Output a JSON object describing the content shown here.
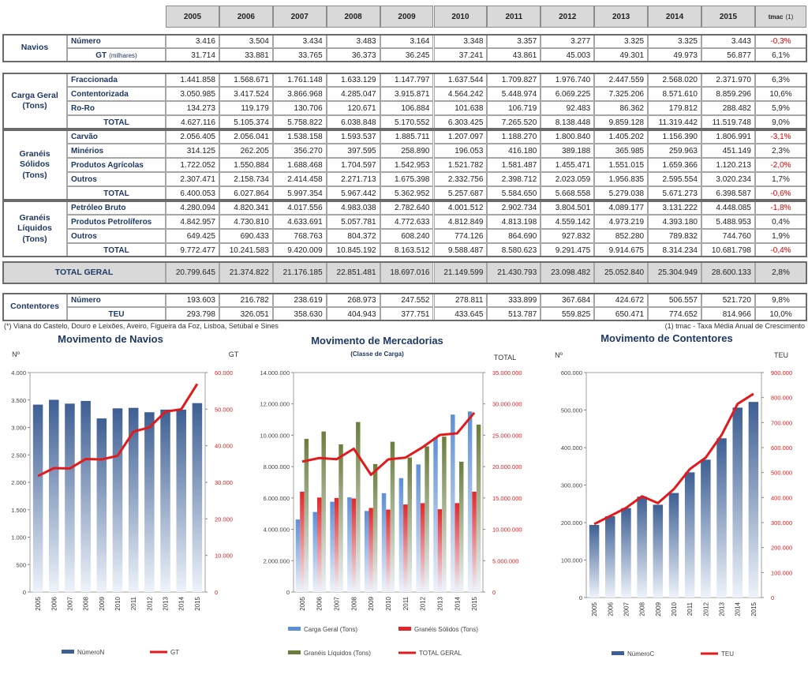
{
  "table": {
    "header": [
      "2005",
      "2006",
      "2007",
      "2008",
      "2009",
      "2010",
      "2011",
      "2012",
      "2013",
      "2014",
      "2015",
      "tmac"
    ],
    "header_note": "(1)",
    "sections": [
      {
        "label": "Navios",
        "rows": [
          {
            "label": "Número",
            "cells": [
              "3.416",
              "3.504",
              "3.434",
              "3.483",
              "3.164",
              "3.348",
              "3.357",
              "3.277",
              "3.325",
              "3.325",
              "3.443",
              "-0,3%"
            ]
          },
          {
            "label": "GT",
            "label_note": "(milhares)",
            "cells": [
              "31.714",
              "33.881",
              "33.765",
              "36.373",
              "36.245",
              "37.241",
              "43.861",
              "45.003",
              "49.301",
              "49.973",
              "56.877",
              "6,1%"
            ]
          }
        ]
      },
      {
        "label": "Carga Geral (Tons)",
        "rows": [
          {
            "label": "Fraccionada",
            "cells": [
              "1.441.858",
              "1.568.671",
              "1.761.148",
              "1.633.129",
              "1.147.797",
              "1.637.544",
              "1.709.827",
              "1.976.740",
              "2.447.559",
              "2.568.020",
              "2.371.970",
              "6,3%"
            ]
          },
          {
            "label": "Contentorizada",
            "cells": [
              "3.050.985",
              "3.417.524",
              "3.866.968",
              "4.285.047",
              "3.915.871",
              "4.564.242",
              "5.448.974",
              "6.069.225",
              "7.325.206",
              "8.571.610",
              "8.859.296",
              "10,6%"
            ]
          },
          {
            "label": "Ro-Ro",
            "cells": [
              "134.273",
              "119.179",
              "130.706",
              "120.671",
              "106.884",
              "101.638",
              "106.719",
              "92.483",
              "86.362",
              "179.812",
              "288.482",
              "5,9%"
            ]
          },
          {
            "label": "TOTAL",
            "cells": [
              "4.627.116",
              "5.105.374",
              "5.758.822",
              "6.038.848",
              "5.170.552",
              "6.303.425",
              "7.265.520",
              "8.138.448",
              "9.859.128",
              "11.319.442",
              "11.519.748",
              "9,0%"
            ]
          }
        ]
      },
      {
        "label": "Granéis Sólidos (Tons)",
        "rows": [
          {
            "label": "Carvão",
            "cells": [
              "2.056.405",
              "2.056.041",
              "1.538.158",
              "1.593.537",
              "1.885.711",
              "1.207.097",
              "1.188.270",
              "1.800.840",
              "1.405.202",
              "1.156.390",
              "1.806.991",
              "-3,1%"
            ]
          },
          {
            "label": "Minérios",
            "cells": [
              "314.125",
              "262.205",
              "356.270",
              "397.595",
              "258.890",
              "196.053",
              "416.180",
              "389.188",
              "365.985",
              "259.963",
              "451.149",
              "2,3%"
            ]
          },
          {
            "label": "Produtos Agrícolas",
            "cells": [
              "1.722.052",
              "1.550.884",
              "1.688.468",
              "1.704.597",
              "1.542.953",
              "1.521.782",
              "1.581.487",
              "1.455.471",
              "1.551.015",
              "1.659.366",
              "1.120.213",
              "-2,0%"
            ]
          },
          {
            "label": "Outros",
            "cells": [
              "2.307.471",
              "2.158.734",
              "2.414.458",
              "2.271.713",
              "1.675.398",
              "2.332.756",
              "2.398.712",
              "2.023.059",
              "1.956.835",
              "2.595.554",
              "3.020.234",
              "1,7%"
            ]
          },
          {
            "label": "TOTAL",
            "cells": [
              "6.400.053",
              "6.027.864",
              "5.997.354",
              "5.967.442",
              "5.362.952",
              "5.257.687",
              "5.584.650",
              "5.668.558",
              "5.279.038",
              "5.671.273",
              "6.398.587",
              "-0,6%"
            ]
          }
        ]
      },
      {
        "label": "Granéis Líquidos (Tons)",
        "rows": [
          {
            "label": "Petróleo Bruto",
            "cells": [
              "4.280.094",
              "4.820.341",
              "4.017.556",
              "4.983.038",
              "2.782.640",
              "4.001.512",
              "2.902.734",
              "3.804.501",
              "4.089.177",
              "3.131.222",
              "4.448.085",
              "-1,8%"
            ]
          },
          {
            "label": "Produtos Petrolíferos",
            "cells": [
              "4.842.957",
              "4.730.810",
              "4.633.691",
              "5.057.781",
              "4.772.633",
              "4.812.849",
              "4.813.198",
              "4.559.142",
              "4.973.219",
              "4.393.180",
              "5.488.953",
              "0,4%"
            ]
          },
          {
            "label": "Outros",
            "cells": [
              "649.425",
              "690.433",
              "768.763",
              "804.372",
              "608.240",
              "774.126",
              "864.690",
              "927.832",
              "852.280",
              "789.832",
              "744.760",
              "1,9%"
            ]
          },
          {
            "label": "TOTAL",
            "cells": [
              "9.772.477",
              "10.241.583",
              "9.420.009",
              "10.845.192",
              "8.163.512",
              "9.588.487",
              "8.580.623",
              "9.291.475",
              "9.914.675",
              "8.314.234",
              "10.681.798",
              "-0,4%"
            ]
          }
        ]
      },
      {
        "label": "TOTAL GERAL",
        "cells": [
          "20.799.645",
          "21.374.822",
          "21.176.185",
          "22.851.481",
          "18.697.016",
          "21.149.599",
          "21.430.793",
          "23.098.482",
          "25.052.840",
          "25.304.949",
          "28.600.133",
          "2,8%"
        ]
      },
      {
        "label": "Contentores",
        "rows": [
          {
            "label": "Número",
            "cells": [
              "193.603",
              "216.782",
              "238.619",
              "268.973",
              "247.552",
              "278.811",
              "333.899",
              "367.684",
              "424.672",
              "506.557",
              "521.720",
              "9,8%"
            ]
          },
          {
            "label": "TEU",
            "cells": [
              "293.798",
              "326.051",
              "358.630",
              "404.943",
              "377.751",
              "433.645",
              "513.787",
              "559.825",
              "650.471",
              "774.652",
              "814.966",
              "10,0%"
            ]
          }
        ]
      }
    ]
  },
  "footnotes": [
    "(*) Viana do Castelo, Douro e Leixões, Aveiro, Figueira da Foz, Lisboa, Setúbal e Sines",
    "(1) tmac - Taxa Média Anual de Crescimento"
  ],
  "chart_data": [
    {
      "type": "combo",
      "title": "Movimento de Navios",
      "ylabel": "Nº",
      "y2label": "GT",
      "categories": [
        "2005",
        "2006",
        "2007",
        "2008",
        "2009",
        "2010",
        "2011",
        "2012",
        "2013",
        "2014",
        "2015"
      ],
      "ylim": [
        0,
        4000
      ],
      "yticks": [
        0,
        500,
        {
          "value": 1000,
          "label": "1.000"
        },
        {
          "value": 1500,
          "label": "1.500"
        },
        {
          "value": 2000,
          "label": "2.000"
        },
        {
          "value": 2500,
          "label": "2.500"
        },
        {
          "value": 3000,
          "label": "3.000"
        },
        {
          "value": 3500,
          "label": "3.500"
        },
        {
          "value": 4000,
          "label": "4.000"
        }
      ],
      "y2lim": [
        0,
        60000
      ],
      "y2ticks": [
        0,
        {
          "value": 10000,
          "label": "10.000"
        },
        {
          "value": 20000,
          "label": "20.000"
        },
        {
          "value": 30000,
          "label": "30.000"
        },
        {
          "value": 40000,
          "label": "40.000"
        },
        {
          "value": 50000,
          "label": "50.000"
        },
        {
          "value": 60000,
          "label": "60.000"
        }
      ],
      "series": [
        {
          "name": "NúmeroN",
          "kind": "bar",
          "color": "#3e5f93",
          "values": [
            3416,
            3504,
            3434,
            3483,
            3164,
            3348,
            3357,
            3277,
            3325,
            3325,
            3443
          ]
        },
        {
          "name": "GT",
          "kind": "line",
          "axis": "y2",
          "color": "#e31a1c",
          "values": [
            31714,
            33881,
            33765,
            36373,
            36245,
            37241,
            43861,
            45003,
            49301,
            49973,
            56877
          ]
        }
      ]
    },
    {
      "type": "combo",
      "title": "Movimento  de Mercadorias",
      "subtitle": "(Classe de Carga)",
      "y2label": "TOTAL",
      "categories": [
        "2005",
        "2006",
        "2007",
        "2008",
        "2009",
        "2010",
        "2011",
        "2012",
        "2013",
        "2014",
        "2015"
      ],
      "ylim": [
        0,
        14000000
      ],
      "yticks": [
        0,
        {
          "value": 2000000,
          "label": "2.000.000"
        },
        {
          "value": 4000000,
          "label": "4.000.000"
        },
        {
          "value": 6000000,
          "label": "6.000.000"
        },
        {
          "value": 8000000,
          "label": "8.000.000"
        },
        {
          "value": 10000000,
          "label": "10.000.000"
        },
        {
          "value": 12000000,
          "label": "12.000.000"
        },
        {
          "value": 14000000,
          "label": "14.000.000"
        }
      ],
      "y2lim": [
        0,
        35000000
      ],
      "y2ticks": [
        0,
        {
          "value": 5000000,
          "label": "5.000.000"
        },
        {
          "value": 10000000,
          "label": "10.000.000"
        },
        {
          "value": 15000000,
          "label": "15.000.000"
        },
        {
          "value": 20000000,
          "label": "20.000.000"
        },
        {
          "value": 25000000,
          "label": "25.000.000"
        },
        {
          "value": 30000000,
          "label": "30.000.000"
        },
        {
          "value": 35000000,
          "label": "35.000.000"
        }
      ],
      "series": [
        {
          "name": "Carga Geral (Tons)",
          "kind": "bar",
          "color": "#5b8fd6",
          "values": [
            4627116,
            5105374,
            5758822,
            6038848,
            5170552,
            6303425,
            7265520,
            8138448,
            9859128,
            11319442,
            11519748
          ]
        },
        {
          "name": "Granéis Sólidos (Tons)",
          "kind": "bar",
          "color": "#e3262b",
          "values": [
            6400053,
            6027864,
            5997354,
            5967442,
            5362952,
            5257687,
            5584650,
            5668558,
            5279038,
            5671273,
            6398587
          ]
        },
        {
          "name": "Granéis Líquidos (Tons)",
          "kind": "bar",
          "color": "#6b7d3c",
          "values": [
            9772477,
            10241583,
            9420009,
            10845192,
            8163512,
            9588487,
            8580623,
            9291475,
            9914675,
            8314234,
            10681798
          ]
        },
        {
          "name": "TOTAL GERAL",
          "kind": "line",
          "axis": "y2",
          "color": "#e31a1c",
          "values": [
            20799645,
            21374822,
            21176185,
            22851481,
            18697016,
            21149599,
            21430793,
            23098482,
            25052840,
            25304949,
            28600133
          ]
        }
      ]
    },
    {
      "type": "combo",
      "title": "Movimento de Contentores",
      "ylabel": "Nº",
      "y2label": "TEU",
      "categories": [
        "2005",
        "2006",
        "2007",
        "2008",
        "2009",
        "2010",
        "2011",
        "2012",
        "2013",
        "2014",
        "2015"
      ],
      "ylim": [
        0,
        600000
      ],
      "yticks": [
        0,
        {
          "value": 100000,
          "label": "100.000"
        },
        {
          "value": 200000,
          "label": "200.000"
        },
        {
          "value": 300000,
          "label": "300.000"
        },
        {
          "value": 400000,
          "label": "400.000"
        },
        {
          "value": 500000,
          "label": "500.000"
        },
        {
          "value": 600000,
          "label": "600.000"
        }
      ],
      "y2lim": [
        0,
        900000
      ],
      "y2ticks": [
        0,
        {
          "value": 100000,
          "label": "100.000"
        },
        {
          "value": 200000,
          "label": "200.000"
        },
        {
          "value": 300000,
          "label": "300.000"
        },
        {
          "value": 400000,
          "label": "400.000"
        },
        {
          "value": 500000,
          "label": "500.000"
        },
        {
          "value": 600000,
          "label": "600.000"
        },
        {
          "value": 700000,
          "label": "700.000"
        },
        {
          "value": 800000,
          "label": "800.000"
        },
        {
          "value": 900000,
          "label": "900.000"
        }
      ],
      "series": [
        {
          "name": "NúmeroC",
          "kind": "bar",
          "color": "#3e5f93",
          "values": [
            193603,
            216782,
            238619,
            268973,
            247552,
            278811,
            333899,
            367684,
            424672,
            506557,
            521720
          ]
        },
        {
          "name": "TEU",
          "kind": "line",
          "axis": "y2",
          "color": "#e31a1c",
          "values": [
            293798,
            326051,
            358630,
            404943,
            377751,
            433645,
            513787,
            559825,
            650471,
            774652,
            814966
          ]
        }
      ]
    }
  ]
}
